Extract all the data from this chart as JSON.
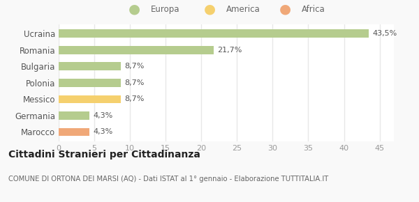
{
  "categories": [
    "Ucraina",
    "Romania",
    "Bulgaria",
    "Polonia",
    "Messico",
    "Germania",
    "Marocco"
  ],
  "values": [
    43.5,
    21.7,
    8.7,
    8.7,
    8.7,
    4.3,
    4.3
  ],
  "labels": [
    "43,5%",
    "21,7%",
    "8,7%",
    "8,7%",
    "8,7%",
    "4,3%",
    "4,3%"
  ],
  "colors": [
    "#b5cc8e",
    "#b5cc8e",
    "#b5cc8e",
    "#b5cc8e",
    "#f5d06e",
    "#b5cc8e",
    "#f0a878"
  ],
  "legend": [
    {
      "label": "Europa",
      "color": "#b5cc8e"
    },
    {
      "label": "America",
      "color": "#f5d06e"
    },
    {
      "label": "Africa",
      "color": "#f0a878"
    }
  ],
  "title": "Cittadini Stranieri per Cittadinanza",
  "subtitle": "COMUNE DI ORTONA DEI MARSI (AQ) - Dati ISTAT al 1° gennaio - Elaborazione TUTTITALIA.IT",
  "xlim": [
    0,
    47
  ],
  "xticks": [
    0,
    5,
    10,
    15,
    20,
    25,
    30,
    35,
    40,
    45
  ],
  "background_color": "#f9f9f9",
  "plot_bg_color": "#ffffff",
  "grid_color": "#e8e8e8",
  "bar_height": 0.5
}
